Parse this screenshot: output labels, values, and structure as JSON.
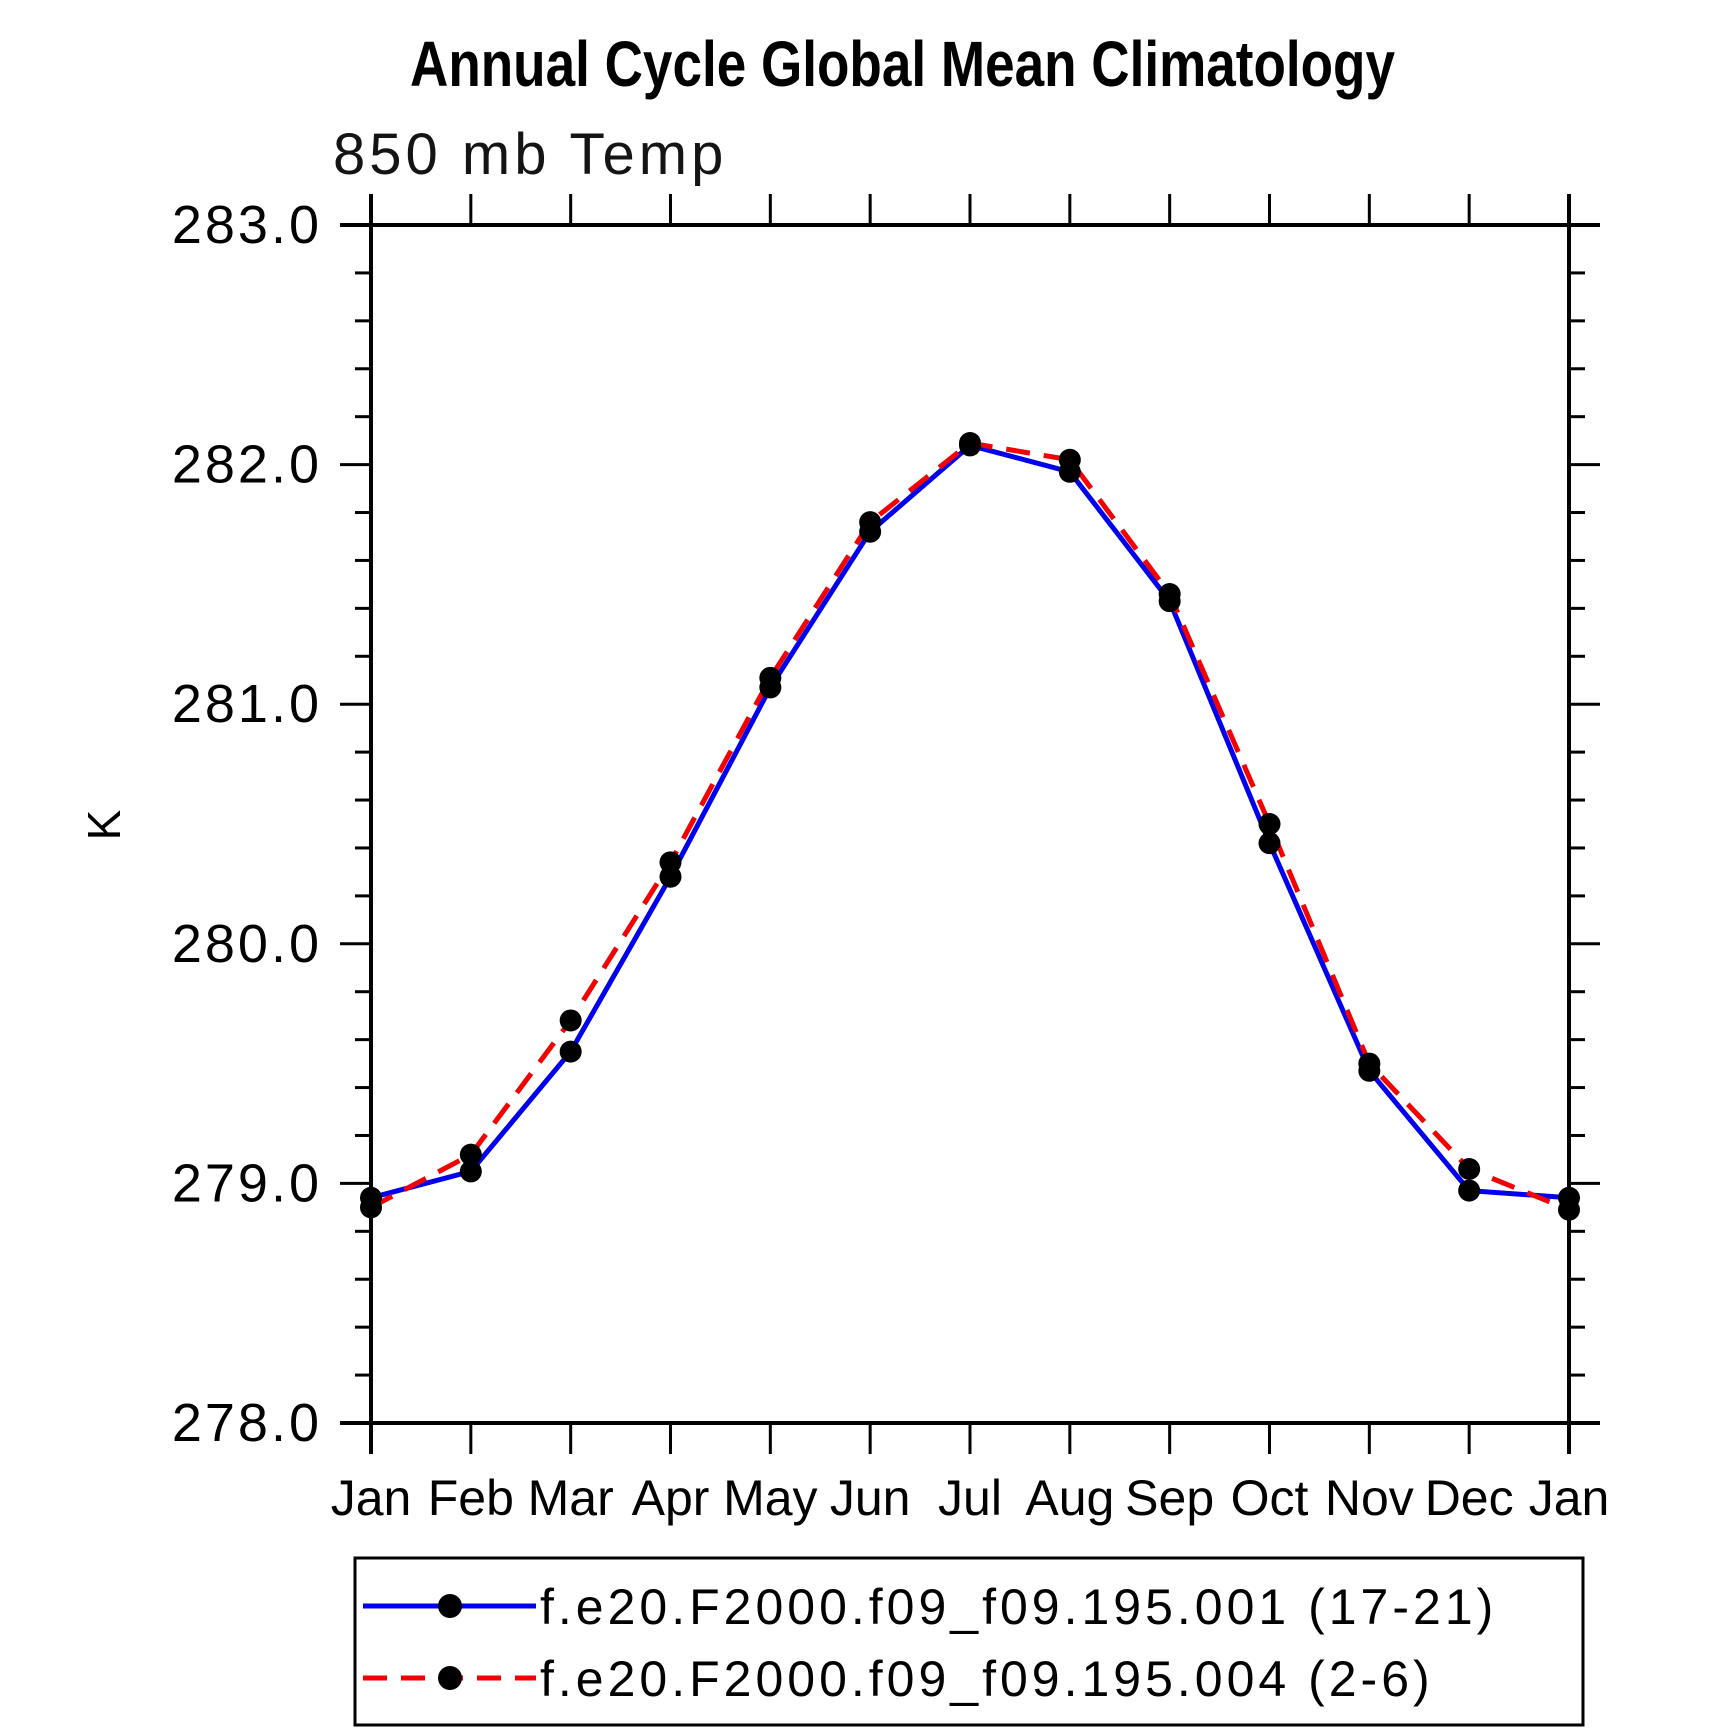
{
  "title": "Annual Cycle Global Mean Climatology",
  "chart_data": {
    "type": "line",
    "title": "Annual Cycle Global Mean Climatology",
    "subtitle": "850 mb Temp",
    "ylabel": "K",
    "xlabel": "",
    "ylim": [
      278.0,
      283.0
    ],
    "ytick_major_step": 1.0,
    "ytick_minor_step": 0.2,
    "ytick_labels": [
      "283.0",
      "282.0",
      "281.0",
      "280.0",
      "279.0",
      "278.0"
    ],
    "grid": false,
    "legend_position": "bottom",
    "categories": [
      "Jan",
      "Feb",
      "Mar",
      "Apr",
      "May",
      "Jun",
      "Jul",
      "Aug",
      "Sep",
      "Oct",
      "Nov",
      "Dec",
      "Jan"
    ],
    "series": [
      {
        "name": "f.e20.F2000.f09_f09.195.001 (17-21)",
        "color": "#0000ee",
        "style": "solid",
        "marker": "circle",
        "marker_color": "#000000",
        "values": [
          278.94,
          279.05,
          279.55,
          280.28,
          281.07,
          281.72,
          282.08,
          281.97,
          281.43,
          280.42,
          279.47,
          278.97,
          278.94
        ]
      },
      {
        "name": "f.e20.F2000.f09_f09.195.004 (2-6)",
        "color": "#f50000",
        "style": "dashed",
        "marker": "circle",
        "marker_color": "#000000",
        "values": [
          278.9,
          279.12,
          279.68,
          280.34,
          281.11,
          281.76,
          282.09,
          282.02,
          281.46,
          280.5,
          279.5,
          279.06,
          278.89
        ]
      }
    ]
  }
}
